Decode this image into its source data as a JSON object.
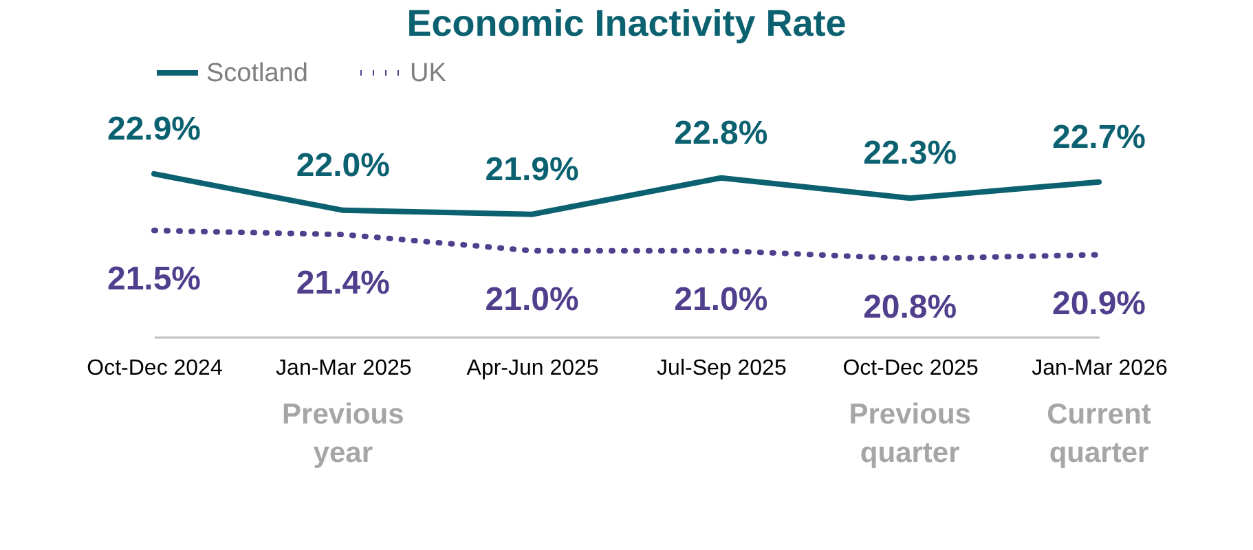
{
  "chart_data": {
    "type": "line",
    "title": "Economic Inactivity Rate",
    "categories": [
      "Oct-Dec 2024",
      "Jan-Mar 2025",
      "Apr-Jun 2025",
      "Jul-Sep 2025",
      "Oct-Dec 2025",
      "Jan-Mar 2026"
    ],
    "series": [
      {
        "name": "Scotland",
        "color": "#0b6170",
        "line_style": "solid",
        "values": [
          22.9,
          22.0,
          21.9,
          22.8,
          22.3,
          22.7
        ],
        "value_labels": [
          "22.9%",
          "22.0%",
          "21.9%",
          "22.8%",
          "22.3%",
          "22.7%"
        ]
      },
      {
        "name": "UK",
        "color": "#4f3f8c",
        "line_style": "dotted",
        "values": [
          21.5,
          21.4,
          21.0,
          21.0,
          20.8,
          20.9
        ],
        "value_labels": [
          "21.5%",
          "21.4%",
          "21.0%",
          "21.0%",
          "20.8%",
          "20.9%"
        ]
      }
    ],
    "annotations": [
      "Previous year",
      "Previous quarter",
      "Current quarter"
    ],
    "legend": "top",
    "grid": false
  }
}
